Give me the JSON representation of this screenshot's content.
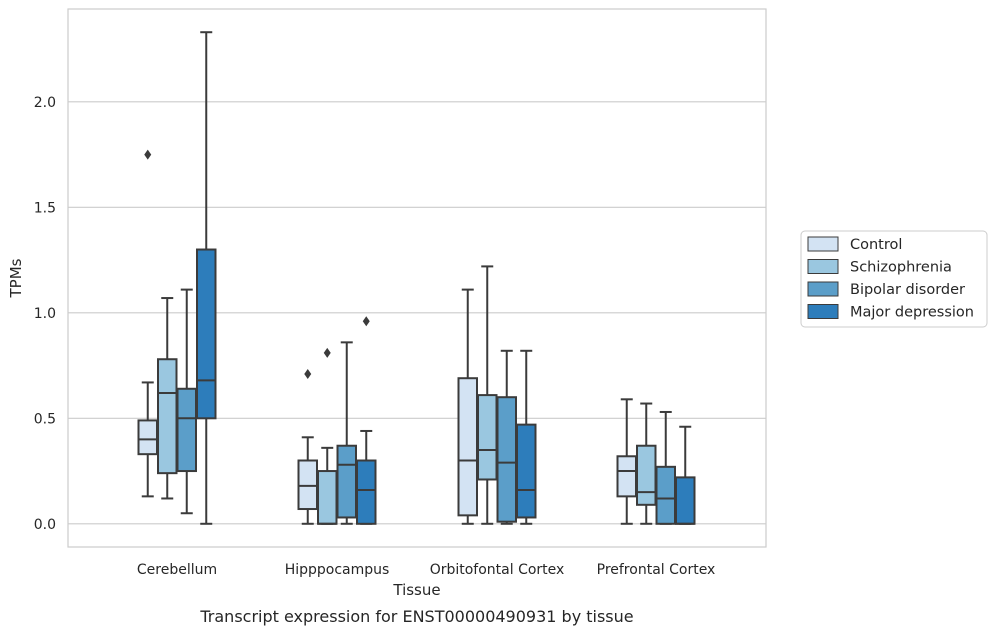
{
  "chart_data": {
    "type": "box",
    "xlabel": "Tissue",
    "ylabel": "TPMs",
    "caption": "Transcript expression for ENST00000490931 by tissue",
    "ylim": [
      -0.11,
      2.44
    ],
    "y_ticks": [
      0.0,
      0.5,
      1.0,
      1.5,
      2.0
    ],
    "y_tick_labels": [
      "0.0",
      "0.5",
      "1.0",
      "1.5",
      "2.0"
    ],
    "grid": "horizontal",
    "legend_placement": "right",
    "categories": [
      "Cerebellum",
      "Hipppocampus",
      "Orbitofontal Cortex",
      "Prefrontal Cortex"
    ],
    "series": [
      {
        "name": "Control",
        "color": "#d3e3f3",
        "boxes": [
          {
            "min": 0.13,
            "q1": 0.33,
            "median": 0.4,
            "q3": 0.49,
            "max": 0.67,
            "outliers": [
              1.75
            ]
          },
          {
            "min": 0.0,
            "q1": 0.07,
            "median": 0.18,
            "q3": 0.3,
            "max": 0.41,
            "outliers": [
              0.71
            ]
          },
          {
            "min": 0.0,
            "q1": 0.04,
            "median": 0.3,
            "q3": 0.69,
            "max": 1.11,
            "outliers": []
          },
          {
            "min": 0.0,
            "q1": 0.13,
            "median": 0.25,
            "q3": 0.32,
            "max": 0.59,
            "outliers": []
          }
        ]
      },
      {
        "name": "Schizophrenia",
        "color": "#9ac7e0",
        "boxes": [
          {
            "min": 0.12,
            "q1": 0.24,
            "median": 0.62,
            "q3": 0.78,
            "max": 1.07,
            "outliers": []
          },
          {
            "min": 0.0,
            "q1": 0.0,
            "median": 0.0,
            "q3": 0.25,
            "max": 0.36,
            "outliers": [
              0.81
            ]
          },
          {
            "min": 0.0,
            "q1": 0.21,
            "median": 0.35,
            "q3": 0.61,
            "max": 1.22,
            "outliers": []
          },
          {
            "min": 0.0,
            "q1": 0.09,
            "median": 0.15,
            "q3": 0.37,
            "max": 0.57,
            "outliers": []
          }
        ]
      },
      {
        "name": "Bipolar disorder",
        "color": "#5b9ec9",
        "boxes": [
          {
            "min": 0.05,
            "q1": 0.25,
            "median": 0.5,
            "q3": 0.64,
            "max": 1.11,
            "outliers": []
          },
          {
            "min": 0.0,
            "q1": 0.03,
            "median": 0.28,
            "q3": 0.37,
            "max": 0.86,
            "outliers": []
          },
          {
            "min": 0.0,
            "q1": 0.01,
            "median": 0.29,
            "q3": 0.6,
            "max": 0.82,
            "outliers": []
          },
          {
            "min": 0.0,
            "q1": 0.0,
            "median": 0.12,
            "q3": 0.27,
            "max": 0.53,
            "outliers": []
          }
        ]
      },
      {
        "name": "Major depression",
        "color": "#2d7dbb",
        "boxes": [
          {
            "min": 0.0,
            "q1": 0.5,
            "median": 0.68,
            "q3": 1.3,
            "max": 2.33,
            "outliers": []
          },
          {
            "min": 0.0,
            "q1": 0.0,
            "median": 0.16,
            "q3": 0.3,
            "max": 0.44,
            "outliers": [
              0.96
            ]
          },
          {
            "min": 0.0,
            "q1": 0.03,
            "median": 0.16,
            "q3": 0.47,
            "max": 0.82,
            "outliers": []
          },
          {
            "min": 0.0,
            "q1": 0.0,
            "median": 0.0,
            "q3": 0.22,
            "max": 0.46,
            "outliers": []
          }
        ]
      }
    ]
  },
  "colors": {
    "edge": "#3b3b3b",
    "grid": "#cccccc",
    "frame": "#cccccc",
    "text": "#262626"
  }
}
